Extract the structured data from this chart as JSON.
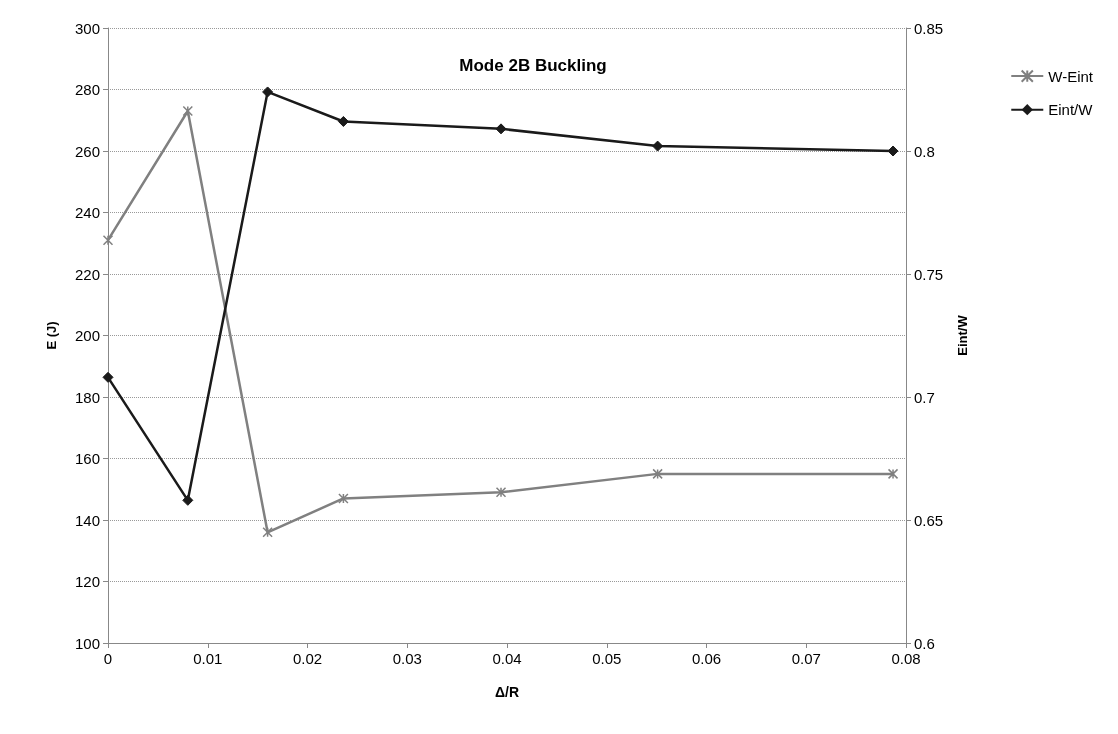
{
  "chart_data": {
    "type": "line",
    "title": "Mode 2B Buckling",
    "xlabel": "Δ/R",
    "ylabel": "E (J)",
    "y2label": "Eint/W",
    "x": [
      0,
      0.008,
      0.016,
      0.0236,
      0.0394,
      0.0551,
      0.0787
    ],
    "series": [
      {
        "name": "W-Eint",
        "color": "#808080",
        "marker": "cross",
        "values": [
          231,
          273,
          136,
          147,
          149,
          155,
          155
        ]
      },
      {
        "name": "Eint/W",
        "color": "#1a1a1a",
        "marker": "diamond",
        "axis": "y2",
        "values": [
          0.708,
          0.658,
          0.824,
          0.812,
          0.809,
          0.802,
          0.8
        ]
      }
    ],
    "xlim": [
      0,
      0.08
    ],
    "xticks": [
      0,
      0.01,
      0.02,
      0.03,
      0.04,
      0.05,
      0.06,
      0.07,
      0.08
    ],
    "ylim": [
      100,
      300
    ],
    "yticks": [
      100,
      120,
      140,
      160,
      180,
      200,
      220,
      240,
      260,
      280,
      300
    ],
    "y2lim": [
      0.6,
      0.85
    ],
    "y2ticks": [
      0.6,
      0.65,
      0.7,
      0.75,
      0.8,
      0.85
    ],
    "grid": "y",
    "legend": "right",
    "line_style": "solid"
  }
}
